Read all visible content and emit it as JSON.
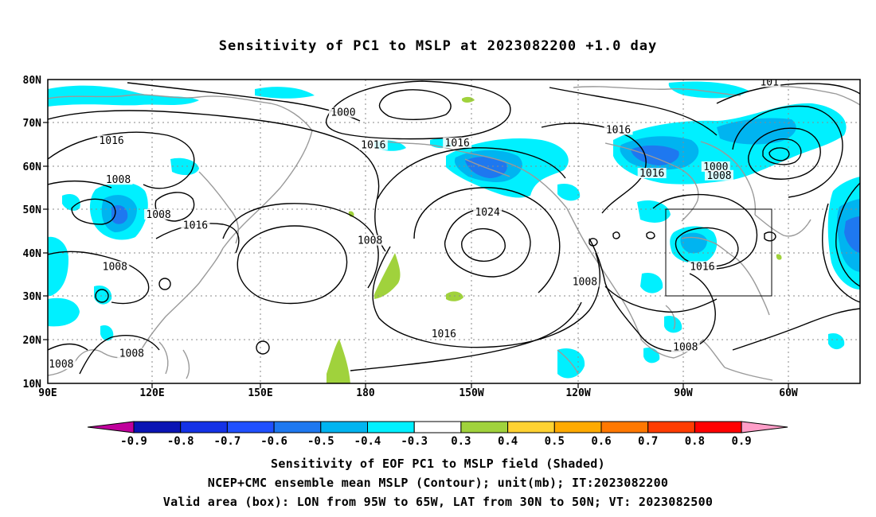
{
  "title": "Sensitivity of PC1 to MSLP at 2023082200 +1.0 day",
  "map": {
    "lat_labels": [
      "80N",
      "70N",
      "60N",
      "50N",
      "40N",
      "30N",
      "20N",
      "10N"
    ],
    "lon_labels": [
      "90E",
      "120E",
      "150E",
      "180",
      "150W",
      "120W",
      "90W",
      "60W"
    ],
    "contour_labels": [
      {
        "text": "1000",
        "lonE": 178,
        "lat": 72
      },
      {
        "text": "1016",
        "lonE": 109,
        "lat": 65.5
      },
      {
        "text": "1016",
        "lonE": 187,
        "lat": 64.5
      },
      {
        "text": "1016",
        "lonE": 212,
        "lat": 65
      },
      {
        "text": "1016",
        "lonE": 260,
        "lat": 68
      },
      {
        "text": "1000",
        "lonE": 289,
        "lat": 59.5
      },
      {
        "text": "1008",
        "lonE": 290,
        "lat": 57.5
      },
      {
        "text": "1016",
        "lonE": 270,
        "lat": 58
      },
      {
        "text": "1008",
        "lonE": 111,
        "lat": 56.5
      },
      {
        "text": "1008",
        "lonE": 123,
        "lat": 48.5
      },
      {
        "text": "1016",
        "lonE": 134,
        "lat": 46
      },
      {
        "text": "1024",
        "lonE": 221,
        "lat": 49
      },
      {
        "text": "1008",
        "lonE": 186,
        "lat": 42.5
      },
      {
        "text": "1008",
        "lonE": 110,
        "lat": 36.5
      },
      {
        "text": "1008",
        "lonE": 250,
        "lat": 33
      },
      {
        "text": "1016",
        "lonE": 285,
        "lat": 36.5
      },
      {
        "text": "1016",
        "lonE": 208,
        "lat": 21
      },
      {
        "text": "1008",
        "lonE": 115,
        "lat": 16.5
      },
      {
        "text": "1008",
        "lonE": 280,
        "lat": 18
      },
      {
        "text": "1008",
        "lonE": 94,
        "lat": 14
      },
      {
        "text": "101",
        "lonE": 305,
        "lat": 79
      }
    ]
  },
  "legend": {
    "labels": [
      "-0.9",
      "-0.8",
      "-0.7",
      "-0.6",
      "-0.5",
      "-0.4",
      "-0.3",
      "0.3",
      "0.4",
      "0.5",
      "0.6",
      "0.7",
      "0.8",
      "0.9"
    ],
    "colors": [
      "#c0009c",
      "#0a14b4",
      "#1432e6",
      "#2050ff",
      "#1e78f0",
      "#00b4f0",
      "#00f0ff",
      "#ffffff",
      "#a0d23c",
      "#ffd232",
      "#ffaa00",
      "#ff7800",
      "#ff3c00",
      "#ff0000",
      "#ff9ec8"
    ]
  },
  "captions": {
    "line1": "Sensitivity of EOF PC1 to MSLP field (Shaded)",
    "line2": "NCEP+CMC ensemble mean MSLP (Contour); unit(mb); IT:2023082200",
    "line3": "Valid area (box): LON from 95W to 65W, LAT from 30N to 50N; VT: 2023082500"
  }
}
